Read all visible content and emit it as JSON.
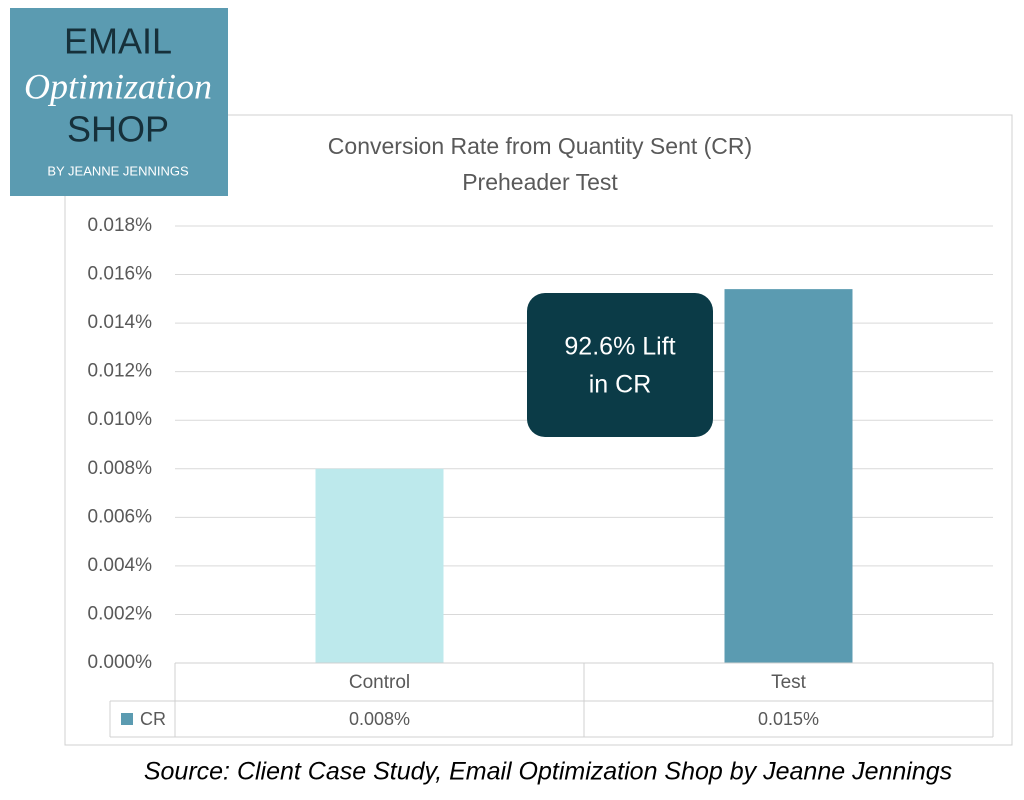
{
  "logo": {
    "line1": "EMAIL",
    "line2": "Optimization",
    "line3": "SHOP",
    "line4": "BY JEANNE JENNINGS"
  },
  "chart_data": {
    "type": "bar",
    "title": "Conversion Rate from Quantity Sent (CR)",
    "subtitle": "Preheader Test",
    "categories": [
      "Control",
      "Test"
    ],
    "series": [
      {
        "name": "CR",
        "color": "#5b9bb1",
        "point_colors": [
          "#bde9ec",
          "#5b9bb1"
        ],
        "values": [
          0.008,
          0.0154
        ],
        "value_labels": [
          "0.008%",
          "0.015%"
        ]
      }
    ],
    "ylim": [
      0,
      0.018
    ],
    "yticks": [
      {
        "value": 0,
        "label": "0.000%"
      },
      {
        "value": 0.002,
        "label": "0.002%"
      },
      {
        "value": 0.004,
        "label": "0.004%"
      },
      {
        "value": 0.006,
        "label": "0.006%"
      },
      {
        "value": 0.008,
        "label": "0.008%"
      },
      {
        "value": 0.01,
        "label": "0.010%"
      },
      {
        "value": 0.012,
        "label": "0.012%"
      },
      {
        "value": 0.014,
        "label": "0.014%"
      },
      {
        "value": 0.016,
        "label": "0.016%"
      },
      {
        "value": 0.018,
        "label": "0.018%"
      }
    ],
    "grid": true,
    "annotation": [
      "92.6% Lift",
      "in CR"
    ]
  },
  "source": "Source: Client Case Study, Email Optimization Shop by Jeanne Jennings"
}
